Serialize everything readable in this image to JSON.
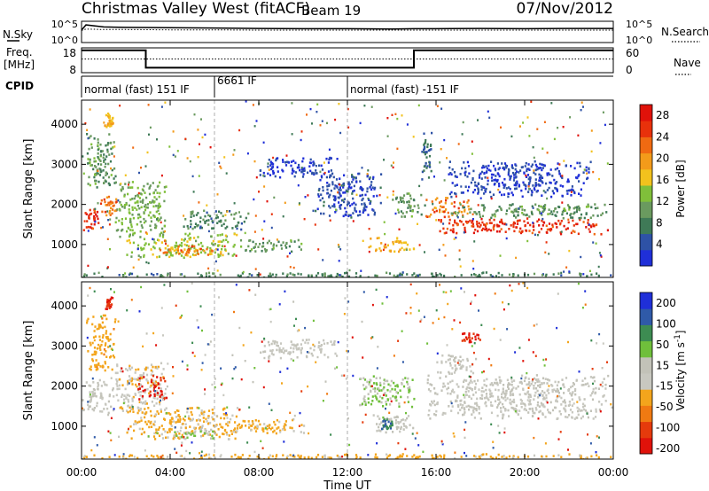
{
  "header": {
    "station": "Christmas Valley West (fitACF)",
    "beam": "Beam 19",
    "date": "07/Nov/2012"
  },
  "top_panels": {
    "nsky_label": "N.Sky",
    "nsky_ticks": [
      "10^5",
      "10^0"
    ],
    "nsearch_label": "N.Search",
    "nsearch_ticks": [
      "10^5",
      "10^0"
    ],
    "freq_label_line1": "Freq.",
    "freq_label_line2": "[MHz]",
    "freq_ticks": [
      "18",
      "8"
    ],
    "nave_label": "Nave",
    "nave_ticks": [
      "60",
      "0"
    ],
    "cpid_label": "CPID",
    "cpid_segments": [
      {
        "label": "normal (fast) 151 IF",
        "start": 0,
        "end": 6
      },
      {
        "label": "6661 IF",
        "start": 6,
        "end": 12
      },
      {
        "label": "normal (fast) -151 IF",
        "start": 12,
        "end": 24
      }
    ]
  },
  "x_axis": {
    "label": "Time UT",
    "ticks": [
      "00:00",
      "04:00",
      "08:00",
      "12:00",
      "16:00",
      "20:00",
      "00:00"
    ]
  },
  "colors": {
    "power": [
      "#1f2fd8",
      "#2e52a6",
      "#3f7a57",
      "#6a9a5f",
      "#80bf3a",
      "#f2c21d",
      "#f39b1a",
      "#f06a12",
      "#e8310b",
      "#e0120a"
    ],
    "velocity": [
      "#1f2fd8",
      "#2f5aa8",
      "#3d8c52",
      "#6fbf3b",
      "#c2c2b8",
      "#c8c8c0",
      "#f3a51c",
      "#f07a12",
      "#e53a0c",
      "#e0120a"
    ]
  },
  "chart_data": [
    {
      "type": "line",
      "panel": "N.Sky / N.Search",
      "x": [
        0,
        0.2,
        1,
        2,
        4,
        6,
        8,
        10,
        12,
        14,
        15,
        16,
        18,
        20,
        22,
        24
      ],
      "series": [
        {
          "name": "N.Sky",
          "values": [
            1000,
            30000,
            8000,
            6000,
            5000,
            4000,
            3000,
            2500,
            2500,
            2000,
            2500,
            2500,
            3000,
            2500,
            3000,
            3000
          ]
        },
        {
          "name": "N.Search",
          "values": [
            800,
            2000,
            1500,
            1500,
            1200,
            1200,
            1000,
            1000,
            1000,
            1000,
            1000,
            1000,
            1000,
            1000,
            1000,
            1000
          ]
        }
      ]
    },
    {
      "type": "line",
      "panel": "Freq. / Nave",
      "x": [
        0,
        2.9,
        2.9,
        15.0,
        15.0,
        24
      ],
      "series": [
        {
          "name": "Freq.",
          "values": [
            17,
            17,
            10,
            10,
            17,
            17
          ]
        },
        {
          "name": "Nave",
          "values": [
            33,
            33,
            33,
            33,
            33,
            33
          ]
        }
      ],
      "ylim": [
        8,
        18
      ]
    },
    {
      "type": "heatmap",
      "panel": "Power",
      "xlabel": "Time UT",
      "ylabel": "Slant Range [km]",
      "xlim": [
        0,
        24
      ],
      "ylim": [
        180,
        4600
      ],
      "yticks": [
        1000,
        2000,
        3000,
        4000
      ],
      "colorbar": {
        "label": "Power [dB]",
        "ticks": [
          4,
          8,
          12,
          16,
          20,
          24,
          28
        ],
        "range": [
          0,
          30
        ]
      },
      "blobs": [
        {
          "t0": 0.0,
          "t1": 0.8,
          "r0": 1350,
          "r1": 1900,
          "level": 26
        },
        {
          "t0": 0.8,
          "t1": 1.6,
          "r0": 1750,
          "r1": 2250,
          "level": 22
        },
        {
          "t0": 0.2,
          "t1": 1.5,
          "r0": 2400,
          "r1": 3800,
          "level": 10
        },
        {
          "t0": 1.0,
          "t1": 1.4,
          "r0": 3900,
          "r1": 4300,
          "level": 18
        },
        {
          "t0": 1.5,
          "t1": 3.8,
          "r0": 1200,
          "r1": 2600,
          "level": 12
        },
        {
          "t0": 2.0,
          "t1": 7.0,
          "r0": 700,
          "r1": 1300,
          "level": 14
        },
        {
          "t0": 3.5,
          "t1": 6.0,
          "r0": 750,
          "r1": 1000,
          "level": 22
        },
        {
          "t0": 4.5,
          "t1": 7.5,
          "r0": 1400,
          "r1": 1900,
          "level": 8
        },
        {
          "t0": 7.0,
          "t1": 10.0,
          "r0": 850,
          "r1": 1150,
          "level": 10
        },
        {
          "t0": 8.0,
          "t1": 11.5,
          "r0": 2700,
          "r1": 3200,
          "level": 3
        },
        {
          "t0": 10.5,
          "t1": 13.5,
          "r0": 1700,
          "r1": 2800,
          "level": 4
        },
        {
          "t0": 13.0,
          "t1": 15.0,
          "r0": 850,
          "r1": 1200,
          "level": 18
        },
        {
          "t0": 14.0,
          "t1": 15.5,
          "r0": 1700,
          "r1": 2300,
          "level": 10
        },
        {
          "t0": 15.3,
          "t1": 15.8,
          "r0": 2600,
          "r1": 3900,
          "level": 6
        },
        {
          "t0": 15.5,
          "t1": 17.5,
          "r0": 1700,
          "r1": 2200,
          "level": 22
        },
        {
          "t0": 16.0,
          "t1": 23.8,
          "r0": 1280,
          "r1": 1680,
          "level": 26
        },
        {
          "t0": 16.5,
          "t1": 23.8,
          "r0": 1680,
          "r1": 2050,
          "level": 10
        },
        {
          "t0": 16.5,
          "t1": 23.0,
          "r0": 2200,
          "r1": 3100,
          "level": 3
        },
        {
          "t0": 0.0,
          "t1": 24.0,
          "r0": 200,
          "r1": 330,
          "level": 8
        }
      ]
    },
    {
      "type": "heatmap",
      "panel": "Velocity",
      "xlabel": "Time UT",
      "ylabel": "Slant Range [km]",
      "xlim": [
        0,
        24
      ],
      "ylim": [
        180,
        4600
      ],
      "yticks": [
        1000,
        2000,
        3000,
        4000
      ],
      "colorbar": {
        "label": "Velocity [m s^-1]",
        "ticks": [
          200,
          100,
          50,
          15,
          -15,
          -50,
          -100,
          -200
        ],
        "range": [
          -250,
          250
        ]
      },
      "blobs": [
        {
          "t0": 0.0,
          "t1": 1.6,
          "r0": 1350,
          "r1": 2200,
          "level": 0
        },
        {
          "t0": 0.2,
          "t1": 1.5,
          "r0": 2400,
          "r1": 3800,
          "level": -80
        },
        {
          "t0": 1.0,
          "t1": 1.4,
          "r0": 3900,
          "r1": 4300,
          "level": -200
        },
        {
          "t0": 1.5,
          "t1": 3.8,
          "r0": 1400,
          "r1": 2600,
          "level": -40
        },
        {
          "t0": 2.5,
          "t1": 3.8,
          "r0": 1700,
          "r1": 2300,
          "level": -200
        },
        {
          "t0": 2.0,
          "t1": 7.0,
          "r0": 700,
          "r1": 1500,
          "level": -60
        },
        {
          "t0": 4.0,
          "t1": 6.0,
          "r0": 700,
          "r1": 1000,
          "level": 50
        },
        {
          "t0": 6.5,
          "t1": 10.0,
          "r0": 850,
          "r1": 1200,
          "level": -60
        },
        {
          "t0": 8.0,
          "t1": 11.5,
          "r0": 2700,
          "r1": 3200,
          "level": 0
        },
        {
          "t0": 13.0,
          "t1": 15.0,
          "r0": 850,
          "r1": 1300,
          "level": 0
        },
        {
          "t0": 13.5,
          "t1": 14.0,
          "r0": 950,
          "r1": 1200,
          "level": 150
        },
        {
          "t0": 12.5,
          "t1": 15.0,
          "r0": 1500,
          "r1": 2300,
          "level": 50
        },
        {
          "t0": 15.5,
          "t1": 23.8,
          "r0": 1200,
          "r1": 2300,
          "level": 0
        },
        {
          "t0": 16.0,
          "t1": 17.8,
          "r0": 2300,
          "r1": 2800,
          "level": 0
        },
        {
          "t0": 17.0,
          "t1": 18.0,
          "r0": 3100,
          "r1": 3400,
          "level": -200
        },
        {
          "t0": 0.0,
          "t1": 24.0,
          "r0": 200,
          "r1": 330,
          "level": -60
        }
      ]
    }
  ]
}
